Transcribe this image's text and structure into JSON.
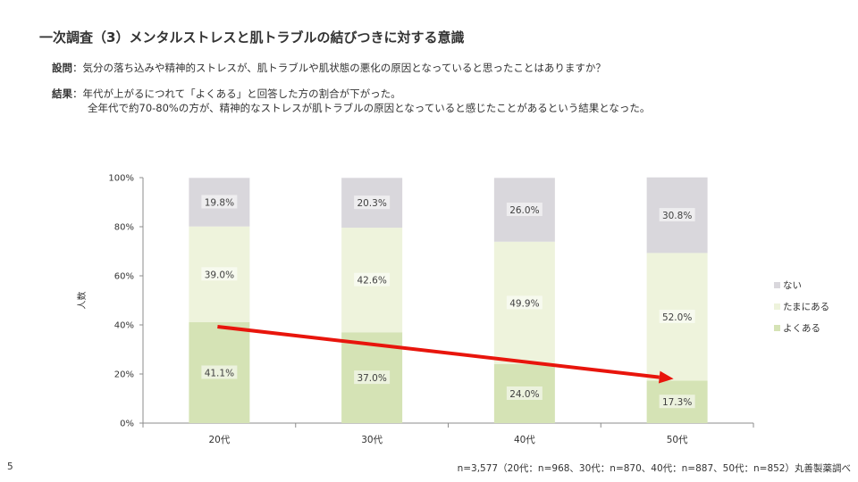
{
  "slide": {
    "title": "一次調査（3）メンタルストレスと肌トラブルの結びつきに対する意識",
    "question_label": "設問",
    "question_text": "：気分の落ち込みや精神的ストレスが、肌トラブルや肌状態の悪化の原因となっていると思ったことはありますか？",
    "result_label": "結果",
    "result_line1": "：年代が上がるにつれて「よくある」と回答した方の割合が下がった。",
    "result_line2": "全年代で約70-80%の方が、精神的なストレスが肌トラブルの原因となっていると感じたことがあるという結果となった。",
    "footnote": "n=3,577（20代：n=968、30代：n=870、40代：n=887、50代：n=852）丸善製薬調べ",
    "page_number": "5"
  },
  "chart_data": {
    "type": "bar",
    "stacked": true,
    "categories": [
      "20代",
      "30代",
      "40代",
      "50代"
    ],
    "series": [
      {
        "name": "よくある",
        "values": [
          41.1,
          37.0,
          24.0,
          17.3
        ],
        "labels": [
          "41.1%",
          "37.0%",
          "24.0%",
          "17.3%"
        ],
        "color": "#d5e3b5"
      },
      {
        "name": "たまにある",
        "values": [
          39.0,
          42.6,
          49.9,
          52.0
        ],
        "labels": [
          "39.0%",
          "42.6%",
          "49.9%",
          "52.0%"
        ],
        "color": "#eef3dc"
      },
      {
        "name": "ない",
        "values": [
          19.8,
          20.3,
          26.0,
          30.8
        ],
        "labels": [
          "19.8%",
          "20.3%",
          "26.0%",
          "30.8%"
        ],
        "color": "#d9d7dc"
      }
    ],
    "ylabel": "人数",
    "ylim": [
      0,
      100
    ],
    "yticks": [
      "0%",
      "20%",
      "40%",
      "60%",
      "80%",
      "100%"
    ],
    "legend_position": "right",
    "arrow_color": "#e8150c",
    "grid": false
  }
}
